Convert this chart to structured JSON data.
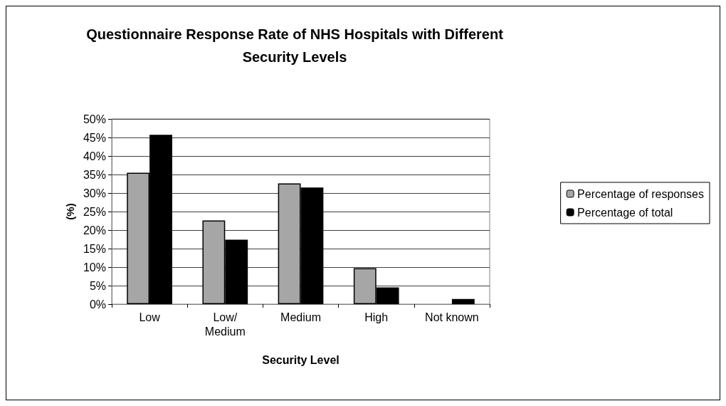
{
  "chart_data": {
    "type": "bar",
    "title": "Questionnaire Response Rate of NHS Hospitals with Different\nSecurity Levels",
    "xlabel": "Security Level",
    "ylabel": "(%)",
    "categories": [
      "Low",
      "Low/\nMedium",
      "Medium",
      "High",
      "Not known"
    ],
    "series": [
      {
        "name": "Percentage of responses",
        "color": "#a6a6a6",
        "values": [
          35.5,
          22.6,
          32.6,
          9.7,
          0
        ]
      },
      {
        "name": "Percentage of total",
        "color": "#000000",
        "values": [
          45.7,
          17.4,
          31.5,
          4.5,
          1.4
        ]
      }
    ],
    "ylim": [
      0,
      50
    ],
    "yticks": [
      {
        "value": 0,
        "label": "0%"
      },
      {
        "value": 5,
        "label": "5%"
      },
      {
        "value": 10,
        "label": "10%"
      },
      {
        "value": 15,
        "label": "15%"
      },
      {
        "value": 20,
        "label": "20%"
      },
      {
        "value": 25,
        "label": "25%"
      },
      {
        "value": 30,
        "label": "30%"
      },
      {
        "value": 35,
        "label": "35%"
      },
      {
        "value": 40,
        "label": "40%"
      },
      {
        "value": 45,
        "label": "45%"
      },
      {
        "value": 50,
        "label": "50%"
      }
    ],
    "grid": "y",
    "legend": "right"
  }
}
